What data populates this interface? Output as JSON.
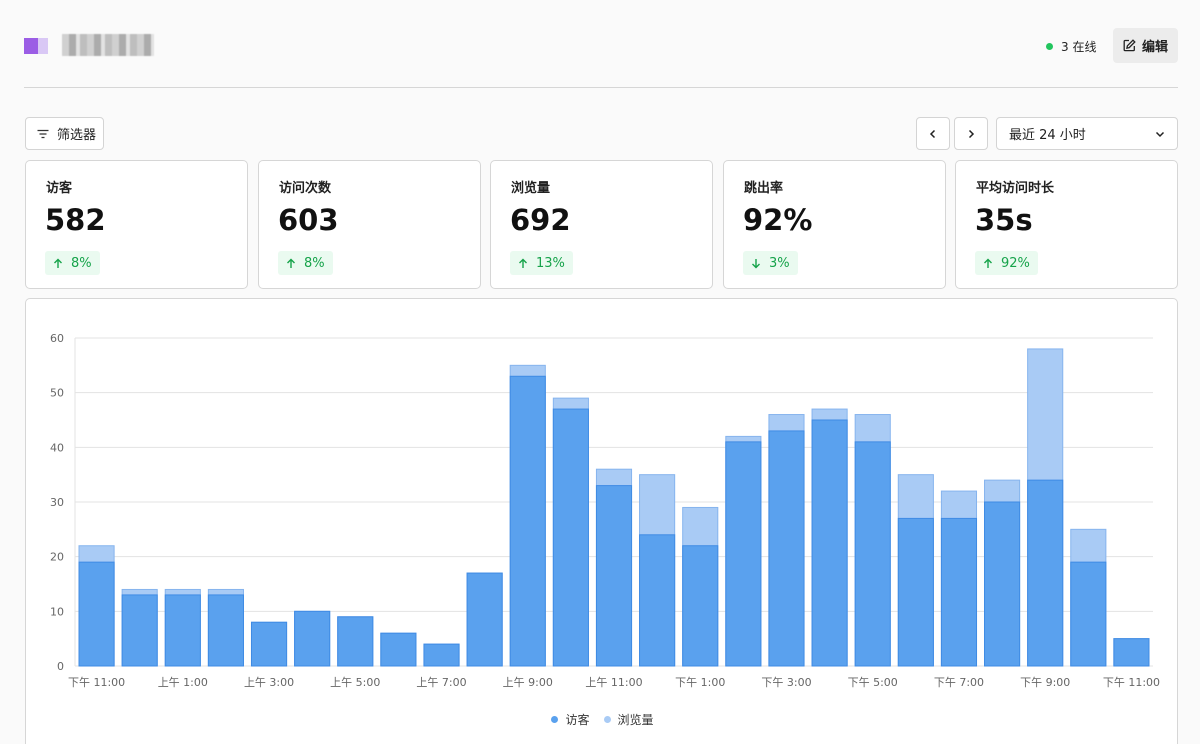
{
  "header": {
    "online_label": "3 在线",
    "edit_label": "编辑"
  },
  "toolbar": {
    "filter_label": "筛选器",
    "range_label": "最近 24 小时"
  },
  "stats": [
    {
      "label": "访客",
      "value": "582",
      "delta": "8%",
      "direction": "up"
    },
    {
      "label": "访问次数",
      "value": "603",
      "delta": "8%",
      "direction": "up"
    },
    {
      "label": "浏览量",
      "value": "692",
      "delta": "13%",
      "direction": "up"
    },
    {
      "label": "跳出率",
      "value": "92%",
      "delta": "3%",
      "direction": "down"
    },
    {
      "label": "平均访问时长",
      "value": "35s",
      "delta": "92%",
      "direction": "up"
    }
  ],
  "colors": {
    "visitors": "#5aa1ee",
    "visitors_stroke": "#3f8be4",
    "views": "#a9cbf5",
    "views_stroke": "#86b4ee",
    "positive": "#16a34a",
    "online_dot": "#22c55e"
  },
  "chart_data": {
    "type": "bar",
    "stacked": false,
    "overlaid": true,
    "ylim": [
      0,
      60
    ],
    "yticks": [
      0,
      10,
      20,
      30,
      40,
      50,
      60
    ],
    "grid": true,
    "legend_position": "bottom-center",
    "xtick_labels": [
      "下午 11:00",
      "上午 1:00",
      "上午 3:00",
      "上午 5:00",
      "上午 7:00",
      "上午 9:00",
      "上午 11:00",
      "下午 1:00",
      "下午 3:00",
      "下午 5:00",
      "下午 7:00",
      "下午 9:00",
      "下午 11:00"
    ],
    "series": [
      {
        "name": "访客",
        "values": [
          19,
          13,
          13,
          13,
          8,
          10,
          9,
          6,
          4,
          17,
          53,
          47,
          33,
          24,
          22,
          41,
          43,
          45,
          41,
          27,
          27,
          30,
          34,
          19,
          5
        ]
      },
      {
        "name": "浏览量",
        "values": [
          22,
          14,
          14,
          14,
          8,
          10,
          9,
          6,
          4,
          17,
          55,
          49,
          36,
          35,
          29,
          42,
          46,
          47,
          46,
          35,
          32,
          34,
          58,
          25,
          5
        ]
      }
    ]
  }
}
